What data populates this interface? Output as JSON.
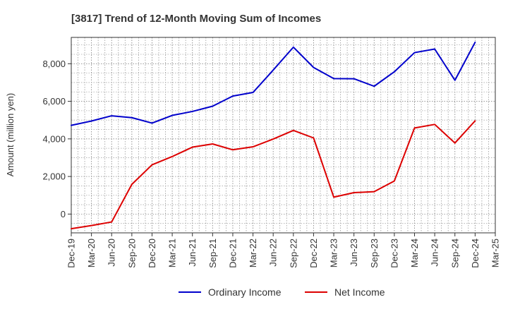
{
  "chart_data": {
    "type": "line",
    "title": "[3817]  Trend of 12-Month Moving Sum of Incomes",
    "xlabel": "",
    "ylabel": "Amount (million yen)",
    "ylim": [
      -1000,
      9400
    ],
    "yticks": [
      0,
      2000,
      4000,
      6000,
      8000
    ],
    "ytick_labels": [
      "0",
      "2,000",
      "4,000",
      "6,000",
      "8,000"
    ],
    "categories": [
      "Dec-19",
      "Mar-20",
      "Jun-20",
      "Sep-20",
      "Dec-20",
      "Mar-21",
      "Jun-21",
      "Sep-21",
      "Dec-21",
      "Mar-22",
      "Jun-22",
      "Sep-22",
      "Dec-22",
      "Mar-23",
      "Jun-23",
      "Sep-23",
      "Dec-23",
      "Mar-24",
      "Jun-24",
      "Sep-24",
      "Dec-24",
      "Mar-25"
    ],
    "grid": true,
    "legend_position": "bottom",
    "series": [
      {
        "name": "Ordinary Income",
        "color": "#0000cc",
        "values": [
          4720,
          4950,
          5230,
          5130,
          4840,
          5250,
          5460,
          5740,
          6280,
          6470,
          7660,
          8880,
          7800,
          7210,
          7200,
          6800,
          7570,
          8590,
          8780,
          7120,
          9140,
          null
        ]
      },
      {
        "name": "Net Income",
        "color": "#dd0000",
        "values": [
          -780,
          -610,
          -420,
          1580,
          2620,
          3060,
          3560,
          3730,
          3420,
          3580,
          3990,
          4450,
          4050,
          900,
          1140,
          1190,
          1760,
          4580,
          4770,
          3780,
          4960,
          null
        ]
      }
    ]
  }
}
